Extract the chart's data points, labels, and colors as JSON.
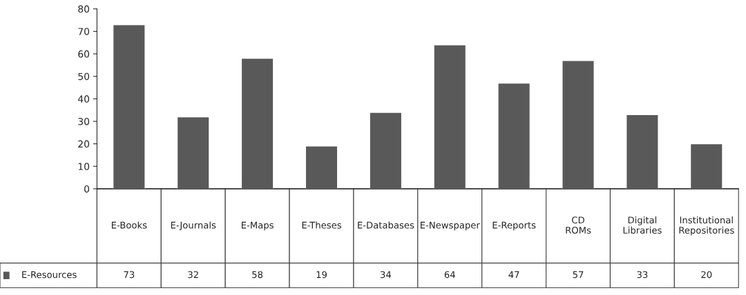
{
  "chart_data": {
    "type": "bar",
    "categories": [
      "E-Books",
      "E-Journals",
      "E-Maps",
      "E-Theses",
      "E-Databases",
      "E-Newspaper",
      "E-Reports",
      "CD ROMs",
      "Digital Libraries",
      "Institutional Repositories"
    ],
    "series": [
      {
        "name": "E-Resources",
        "color": "#595959",
        "values": [
          73,
          32,
          58,
          19,
          34,
          64,
          47,
          57,
          33,
          20
        ]
      }
    ],
    "ylim": [
      0,
      80
    ],
    "yticks": [
      0,
      10,
      20,
      30,
      40,
      50,
      60,
      70,
      80
    ],
    "grid": false,
    "legend": "bottom left",
    "data_labels": true
  }
}
